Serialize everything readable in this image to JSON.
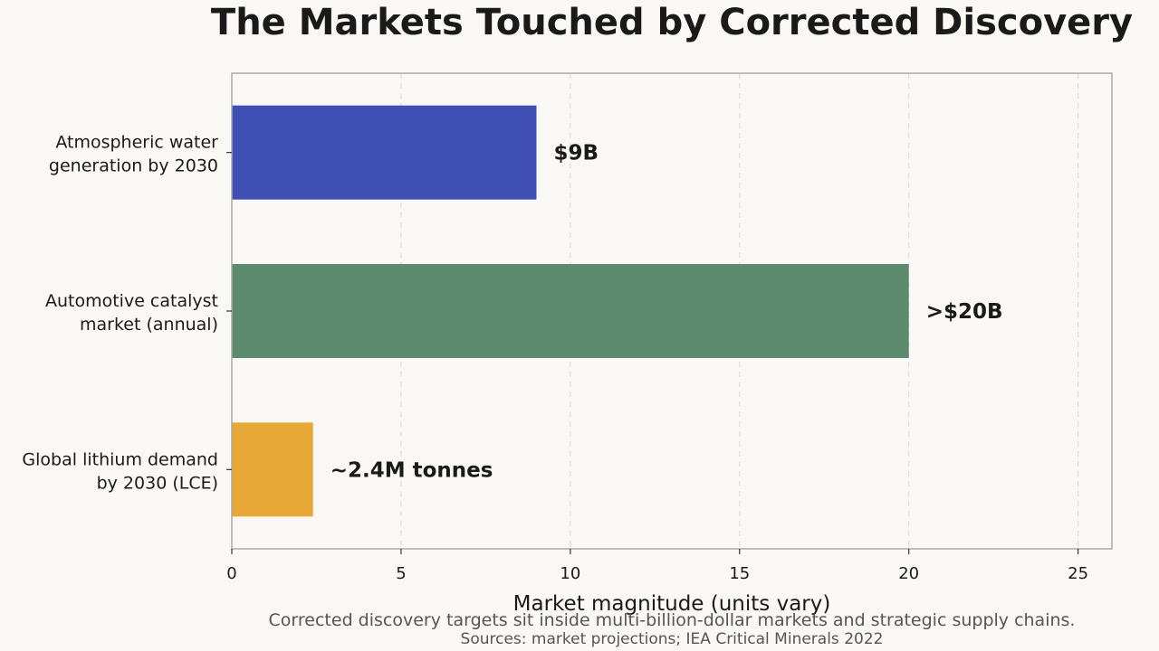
{
  "chart_data": {
    "type": "bar",
    "orientation": "horizontal",
    "title": "The Markets Touched by Corrected Discovery",
    "xlabel": "Market magnitude (units vary)",
    "ylabel": "",
    "xlim": [
      0,
      26
    ],
    "x_ticks": [
      0,
      5,
      10,
      15,
      20,
      25
    ],
    "grid": "x-dashed",
    "categories": [
      [
        "Atmospheric water",
        "generation by 2030"
      ],
      [
        "Automotive catalyst",
        "market (annual)"
      ],
      [
        "Global lithium demand",
        "by 2030 (LCE)"
      ]
    ],
    "values": [
      9,
      20,
      2.4
    ],
    "data_labels": [
      "$9B",
      ">$20B",
      "~2.4M tonnes"
    ],
    "colors": [
      "#3f4fb3",
      "#5b8a6f",
      "#e8a838"
    ]
  },
  "caption": "Corrected discovery targets sit inside multi-billion-dollar markets and strategic supply chains.",
  "source": "Sources: market projections; IEA Critical Minerals 2022"
}
